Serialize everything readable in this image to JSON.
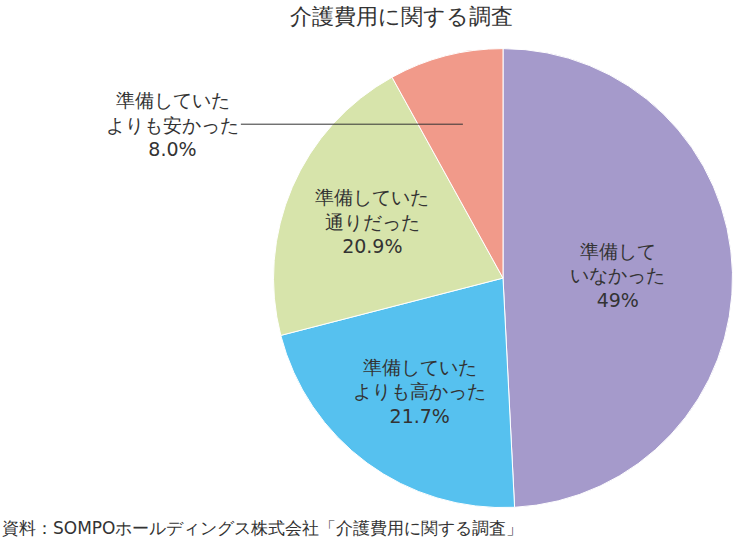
{
  "chart_data": {
    "type": "pie",
    "title": "介護費用に関する調査",
    "categories": [
      "準備して\nいなかった",
      "準備していた\nよりも高かった",
      "準備していた\n通りだった",
      "準備していた\nよりも安かった"
    ],
    "values": [
      49,
      21.7,
      20.9,
      8.0
    ],
    "value_labels": [
      "49%",
      "21.7%",
      "20.9%",
      "8.0%"
    ],
    "colors": [
      "#a59acb",
      "#56c1ef",
      "#d7e4ab",
      "#f19a8a"
    ],
    "data_labels": true,
    "annotations": [
      "資料：SOMPOホールディングス株式会社「介護費用に関する調査」"
    ]
  }
}
